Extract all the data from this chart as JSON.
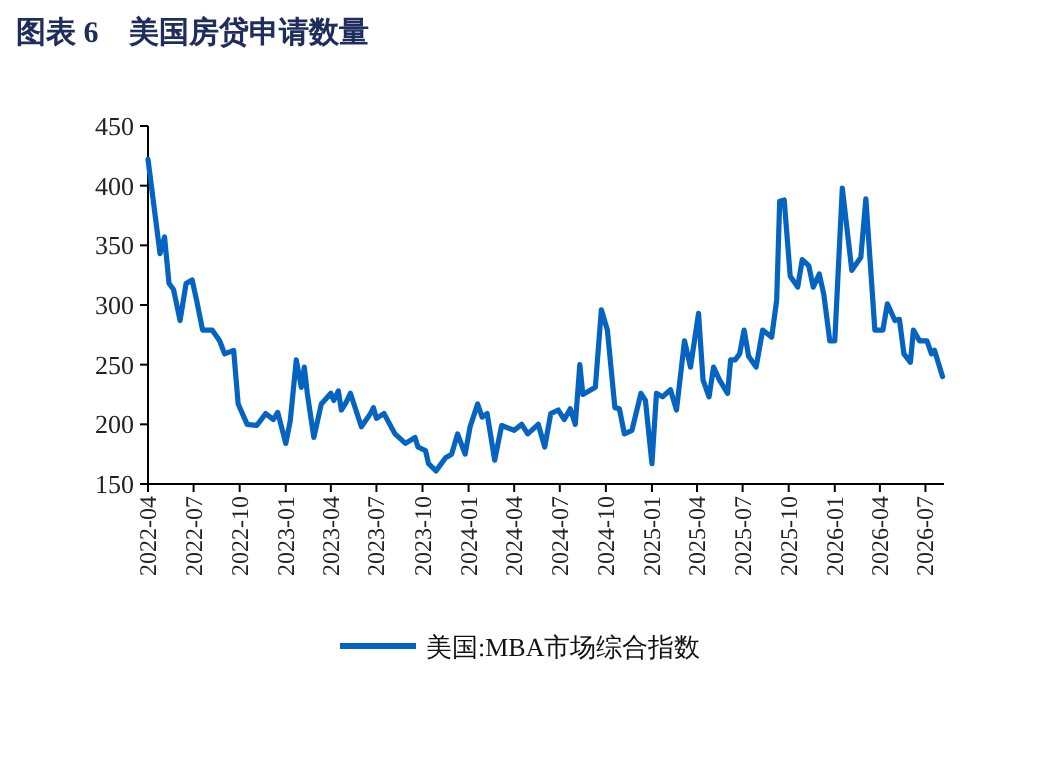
{
  "chart_data": {
    "type": "line",
    "title": "图表 6　美国房贷申请数量",
    "xlim": [
      "2022-04-01",
      "2026-08-07"
    ],
    "xticks": [
      "2022-04",
      "2022-07",
      "2022-10",
      "2023-01",
      "2023-04",
      "2023-07",
      "2023-10",
      "2024-01",
      "2024-04",
      "2024-07",
      "2024-10",
      "2025-01",
      "2025-04",
      "2025-07",
      "2025-10",
      "2026-01",
      "2026-04",
      "2026-07"
    ],
    "ylim": [
      150,
      450
    ],
    "yticks": [
      150,
      200,
      250,
      300,
      350,
      400,
      450
    ],
    "grid": false,
    "legend": "bottom",
    "marker": "none",
    "line_style": "solid",
    "x": [
      "2022-04-01",
      "2022-04-25",
      "2022-05-04",
      "2022-05-13",
      "2022-05-22",
      "2022-06-04",
      "2022-06-16",
      "2022-06-28",
      "2022-07-07",
      "2022-07-19",
      "2022-08-07",
      "2022-08-22",
      "2022-09-01",
      "2022-09-19",
      "2022-09-28",
      "2022-10-16",
      "2022-11-04",
      "2022-11-22",
      "2022-12-07",
      "2022-12-16",
      "2023-01-01",
      "2023-01-10",
      "2023-01-22",
      "2023-02-01",
      "2023-02-07",
      "2023-02-13",
      "2023-02-26",
      "2023-03-13",
      "2023-04-01",
      "2023-04-07",
      "2023-04-16",
      "2023-04-22",
      "2023-05-01",
      "2023-05-10",
      "2023-06-01",
      "2023-06-19",
      "2023-06-25",
      "2023-07-01",
      "2023-07-16",
      "2023-08-07",
      "2023-08-28",
      "2023-09-16",
      "2023-09-22",
      "2023-10-07",
      "2023-10-13",
      "2023-10-28",
      "2023-11-16",
      "2023-11-28",
      "2023-12-10",
      "2023-12-25",
      "2024-01-04",
      "2024-01-19",
      "2024-01-28",
      "2024-02-07",
      "2024-02-22",
      "2024-03-07",
      "2024-04-01",
      "2024-04-16",
      "2024-04-28",
      "2024-05-19",
      "2024-06-01",
      "2024-06-13",
      "2024-06-28",
      "2024-07-10",
      "2024-07-22",
      "2024-08-01",
      "2024-08-10",
      "2024-08-16",
      "2024-09-10",
      "2024-09-22",
      "2024-10-04",
      "2024-10-19",
      "2024-10-28",
      "2024-11-07",
      "2024-11-22",
      "2024-12-10",
      "2024-12-19",
      "2025-01-01",
      "2025-01-10",
      "2025-01-22",
      "2025-02-07",
      "2025-02-19",
      "2025-03-07",
      "2025-03-19",
      "2025-04-04",
      "2025-04-13",
      "2025-04-25",
      "2025-05-04",
      "2025-05-16",
      "2025-06-01",
      "2025-06-07",
      "2025-06-16",
      "2025-06-25",
      "2025-07-04",
      "2025-07-13",
      "2025-07-28",
      "2025-08-10",
      "2025-08-28",
      "2025-09-07",
      "2025-09-13",
      "2025-09-22",
      "2025-10-04",
      "2025-10-19",
      "2025-10-28",
      "2025-11-10",
      "2025-11-19",
      "2025-12-01",
      "2025-12-10",
      "2025-12-22",
      "2026-01-01",
      "2026-01-16",
      "2026-02-04",
      "2026-02-22",
      "2026-03-04",
      "2026-03-22",
      "2026-04-07",
      "2026-04-16",
      "2026-05-01",
      "2026-05-10",
      "2026-05-19",
      "2026-06-01",
      "2026-06-07",
      "2026-06-19",
      "2026-07-04",
      "2026-07-13",
      "2026-07-19",
      "2026-08-04"
    ],
    "series": [
      {
        "name": "美国:MBA市场综合指数",
        "color": "#0563c1",
        "values": [
          422,
          343,
          357,
          318,
          313,
          287,
          318,
          321,
          304,
          279,
          279,
          270,
          259,
          262,
          217,
          200,
          199,
          209,
          204,
          210,
          184,
          203,
          254,
          231,
          248,
          226,
          189,
          217,
          226,
          220,
          228,
          212,
          218,
          226,
          198,
          209,
          214,
          205,
          209,
          192,
          184,
          189,
          181,
          178,
          167,
          161,
          172,
          175,
          192,
          175,
          198,
          217,
          206,
          209,
          170,
          199,
          195,
          200,
          192,
          200,
          181,
          209,
          212,
          204,
          213,
          200,
          250,
          225,
          231,
          296,
          279,
          214,
          213,
          192,
          195,
          226,
          220,
          167,
          226,
          223,
          229,
          212,
          270,
          248,
          293,
          237,
          223,
          248,
          237,
          226,
          254,
          254,
          259,
          279,
          257,
          248,
          279,
          273,
          304,
          387,
          388,
          324,
          315,
          338,
          333,
          315,
          326,
          309,
          270,
          270,
          398,
          329,
          340,
          389,
          279,
          279,
          301,
          287,
          288,
          259,
          252,
          279,
          270,
          270,
          259,
          262,
          240
        ]
      }
    ]
  }
}
